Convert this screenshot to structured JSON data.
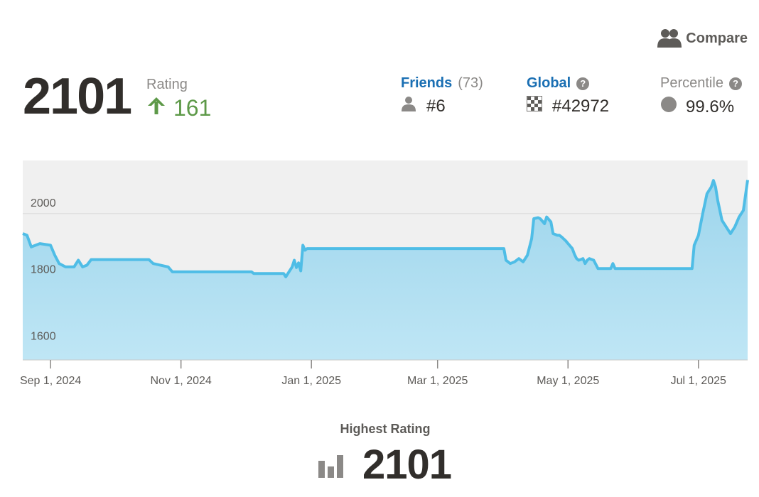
{
  "header": {
    "compare_label": "Compare",
    "rating_value": "2101",
    "rating_label": "Rating",
    "rating_change": "161"
  },
  "stats": {
    "friends": {
      "label": "Friends",
      "count": "(73)",
      "rank": "#6"
    },
    "global": {
      "label": "Global",
      "rank": "#42972"
    },
    "percentile": {
      "label": "Percentile",
      "value": "99.6%"
    }
  },
  "icons": {
    "compare": "users-icon",
    "change": "arrow-up-icon",
    "friends": "user-icon",
    "global": "checkered-icon",
    "percentile": "circle-icon",
    "help": "question-icon",
    "highest": "bar-chart-icon"
  },
  "colors": {
    "accent_line": "#4fbde6",
    "area_fill": "#a2d8ee",
    "positive": "#5d9948",
    "link": "#1a6fb3"
  },
  "highest": {
    "label": "Highest Rating",
    "value": "2101"
  },
  "chart_data": {
    "type": "area",
    "title": "",
    "xlabel": "",
    "ylabel": "",
    "ylim": [
      1560,
      2160
    ],
    "y_ticks": [
      1600,
      1800,
      2000
    ],
    "y_tick_labels": [
      "1600",
      "1800",
      "2000"
    ],
    "x_ticks": [
      "2024-09-01",
      "2024-11-01",
      "2025-01-01",
      "2025-03-01",
      "2025-05-01",
      "2025-07-01"
    ],
    "x_tick_labels": [
      "Sep 1, 2024",
      "Nov 1, 2024",
      "Jan 1, 2025",
      "Mar 1, 2025",
      "May 1, 2025",
      "Jul 1, 2025"
    ],
    "x_range": [
      "2024-08-19",
      "2025-07-24"
    ],
    "grid": true,
    "series": [
      {
        "x": [
          "2024-08-19",
          "2024-08-21",
          "2024-08-23",
          "2024-08-27",
          "2024-09-01",
          "2024-09-03",
          "2024-09-05",
          "2024-09-08",
          "2024-09-12",
          "2024-09-14",
          "2024-09-16",
          "2024-09-18",
          "2024-09-20",
          "2024-09-22",
          "2024-10-17",
          "2024-10-19",
          "2024-10-26",
          "2024-10-28",
          "2024-12-04",
          "2024-12-05",
          "2024-12-19",
          "2024-12-20",
          "2024-12-22",
          "2024-12-23",
          "2024-12-24",
          "2024-12-25",
          "2024-12-26",
          "2024-12-27",
          "2024-12-28",
          "2024-12-29",
          "2024-12-30",
          "2024-12-31",
          "2025-01-01",
          "2025-04-01",
          "2025-04-02",
          "2025-04-04",
          "2025-04-06",
          "2025-04-08",
          "2025-04-10",
          "2025-04-12",
          "2025-04-14",
          "2025-04-15",
          "2025-04-17",
          "2025-04-18",
          "2025-04-20",
          "2025-04-21",
          "2025-04-23",
          "2025-04-24",
          "2025-04-26",
          "2025-04-27",
          "2025-04-28",
          "2025-04-30",
          "2025-05-01",
          "2025-05-03",
          "2025-05-04",
          "2025-05-05",
          "2025-05-06",
          "2025-05-07",
          "2025-05-08",
          "2025-05-09",
          "2025-05-10",
          "2025-05-11",
          "2025-05-13",
          "2025-05-15",
          "2025-05-21",
          "2025-05-22",
          "2025-05-23",
          "2025-06-28",
          "2025-06-29",
          "2025-07-01",
          "2025-07-03",
          "2025-07-05",
          "2025-07-07",
          "2025-07-08",
          "2025-07-09",
          "2025-07-10",
          "2025-07-12",
          "2025-07-14",
          "2025-07-16",
          "2025-07-18",
          "2025-07-20",
          "2025-07-22",
          "2025-07-24"
        ],
        "values": [
          1940,
          1935,
          1900,
          1910,
          1905,
          1875,
          1850,
          1840,
          1840,
          1860,
          1840,
          1845,
          1862,
          1862,
          1862,
          1850,
          1840,
          1825,
          1825,
          1820,
          1820,
          1810,
          1830,
          1840,
          1860,
          1838,
          1852,
          1828,
          1905,
          1890,
          1895,
          1895,
          1895,
          1895,
          1860,
          1850,
          1855,
          1865,
          1855,
          1875,
          1925,
          1985,
          1988,
          1985,
          1970,
          1990,
          1975,
          1940,
          1935,
          1935,
          1930,
          1918,
          1910,
          1895,
          1878,
          1865,
          1860,
          1862,
          1865,
          1850,
          1860,
          1865,
          1860,
          1835,
          1835,
          1850,
          1835,
          1835,
          1905,
          1935,
          2000,
          2060,
          2080,
          2100,
          2080,
          2040,
          1980,
          1960,
          1940,
          1960,
          1990,
          2010,
          2101
        ]
      }
    ]
  }
}
